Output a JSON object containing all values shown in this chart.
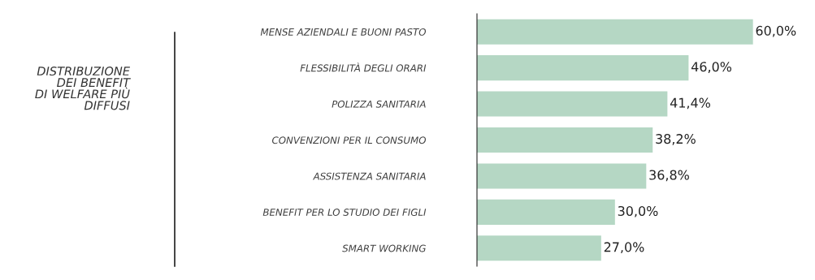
{
  "chart_data": {
    "type": "bar",
    "orientation": "horizontal",
    "title": "DISTRIBUZIONE\nDEI BENEFIT\nDI WELFARE PIÙ\nDIFFUSI",
    "categories": [
      "MENSE AZIENDALI E BUONI PASTO",
      "FLESSIBILITÀ DEGLI ORARI",
      "POLIZZA SANITARIA",
      "CONVENZIONI PER IL CONSUMO",
      "ASSISTENZA SANITARIA",
      "BENEFIT PER LO STUDIO DEI FIGLI",
      "SMART WORKING"
    ],
    "values": [
      60.0,
      46.0,
      41.4,
      38.2,
      36.8,
      30.0,
      27.0
    ],
    "value_labels": [
      "60,0%",
      "46,0%",
      "41,4%",
      "38,2%",
      "36,8%",
      "30,0%",
      "27,0%"
    ],
    "color": "#b5d7c4",
    "grid": false,
    "legend": false
  }
}
